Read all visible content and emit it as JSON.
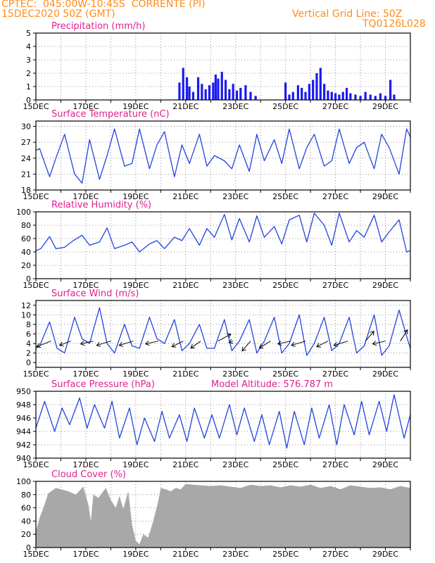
{
  "header": {
    "line1": "CPTEC:  045:00W-10:45S  CORRENTE (PI)",
    "line2": "15DEC2020 50Z (GMT)",
    "right1": "Vertical Grid Line: 50Z",
    "right2": "TQ0126L028"
  },
  "colors": {
    "header": "#ff8c1a",
    "title": "#e0208f",
    "line": "#2244dd",
    "bar": "#1a1aee",
    "cloud": "#a8a8a8",
    "wind_arrow": "#000000"
  },
  "chart_data": [
    {
      "type": "bar",
      "title": "Precipitation (mm/h)",
      "xlabel": "",
      "ylabel": "",
      "xlim": [
        15,
        30
      ],
      "ylim": [
        0,
        5
      ],
      "ytick_labels": [
        "0",
        "1",
        "2",
        "3",
        "4",
        "5"
      ],
      "xtick_labels": [
        "15DEC",
        "17DEC",
        "19DEC",
        "21DEC",
        "23DEC",
        "25DEC",
        "27DEC",
        "29DEC"
      ],
      "x": [
        20.75,
        20.9,
        21.05,
        21.15,
        21.3,
        21.5,
        21.65,
        21.8,
        21.95,
        22.1,
        22.2,
        22.3,
        22.45,
        22.6,
        22.75,
        22.9,
        23.05,
        23.2,
        23.4,
        23.6,
        23.8,
        25.0,
        25.15,
        25.3,
        25.5,
        25.65,
        25.8,
        25.95,
        26.1,
        26.25,
        26.4,
        26.55,
        26.7,
        26.85,
        27.0,
        27.15,
        27.3,
        27.45,
        27.6,
        27.8,
        28.0,
        28.2,
        28.4,
        28.6,
        28.8,
        29.0,
        29.2,
        29.35
      ],
      "values": [
        1.3,
        2.4,
        1.7,
        1.0,
        0.6,
        1.7,
        1.2,
        0.8,
        1.1,
        1.3,
        1.9,
        1.6,
        2.1,
        1.5,
        0.8,
        1.2,
        0.7,
        0.9,
        1.1,
        0.6,
        0.3,
        1.3,
        0.4,
        0.6,
        1.1,
        0.9,
        0.6,
        1.2,
        1.5,
        2.0,
        2.4,
        1.2,
        0.7,
        0.6,
        0.5,
        0.4,
        0.6,
        0.9,
        0.5,
        0.4,
        0.3,
        0.6,
        0.4,
        0.3,
        0.5,
        0.3,
        1.5,
        0.4
      ]
    },
    {
      "type": "line",
      "title": "Surface Temperature (nC)",
      "xlim": [
        15,
        30
      ],
      "ylim": [
        18,
        31
      ],
      "ytick_labels": [
        "18",
        "21",
        "24",
        "27",
        "30"
      ],
      "xtick_labels": [
        "15DEC",
        "17DEC",
        "19DEC",
        "21DEC",
        "23DEC",
        "25DEC",
        "27DEC",
        "29DEC"
      ],
      "x": [
        15.0,
        15.15,
        15.55,
        15.8,
        16.15,
        16.55,
        16.85,
        17.15,
        17.55,
        17.85,
        18.15,
        18.55,
        18.85,
        19.15,
        19.55,
        19.85,
        20.15,
        20.55,
        20.85,
        21.15,
        21.55,
        21.85,
        22.15,
        22.55,
        22.85,
        23.15,
        23.55,
        23.85,
        24.15,
        24.55,
        24.85,
        25.15,
        25.55,
        25.85,
        26.15,
        26.55,
        26.85,
        27.15,
        27.55,
        27.85,
        28.15,
        28.55,
        28.85,
        29.15,
        29.55,
        29.85,
        30.0
      ],
      "values": [
        25.5,
        25.8,
        20.5,
        24.0,
        28.5,
        21.0,
        19.3,
        27.5,
        20.0,
        24.5,
        29.5,
        22.5,
        23.0,
        29.5,
        22.0,
        26.5,
        29.0,
        20.5,
        26.5,
        23.0,
        28.5,
        22.5,
        24.5,
        23.5,
        22.0,
        26.5,
        21.5,
        28.5,
        23.5,
        27.5,
        23.0,
        29.5,
        22.0,
        26.0,
        28.5,
        22.5,
        23.5,
        29.5,
        23.0,
        26.0,
        27.0,
        22.0,
        28.5,
        26.0,
        21.0,
        29.5,
        28.0
      ]
    },
    {
      "type": "line",
      "title": "Relative Humidity (%)",
      "xlim": [
        15,
        30
      ],
      "ylim": [
        0,
        100
      ],
      "ytick_labels": [
        "0",
        "20",
        "40",
        "60",
        "80",
        "100"
      ],
      "xtick_labels": [
        "15DEC",
        "17DEC",
        "19DEC",
        "21DEC",
        "23DEC",
        "25DEC",
        "27DEC",
        "29DEC"
      ],
      "x": [
        15.0,
        15.2,
        15.55,
        15.8,
        16.15,
        16.5,
        16.85,
        17.15,
        17.55,
        17.85,
        18.15,
        18.55,
        18.85,
        19.15,
        19.55,
        19.85,
        20.15,
        20.55,
        20.85,
        21.15,
        21.55,
        21.85,
        22.15,
        22.55,
        22.85,
        23.15,
        23.55,
        23.85,
        24.15,
        24.55,
        24.85,
        25.15,
        25.55,
        25.85,
        26.15,
        26.55,
        26.85,
        27.15,
        27.55,
        27.85,
        28.15,
        28.55,
        28.85,
        29.15,
        29.55,
        29.85,
        30.0
      ],
      "values": [
        42,
        45,
        63,
        45,
        47,
        57,
        65,
        50,
        55,
        76,
        45,
        50,
        55,
        40,
        52,
        57,
        45,
        62,
        57,
        75,
        50,
        75,
        62,
        96,
        58,
        90,
        55,
        94,
        62,
        78,
        52,
        88,
        95,
        55,
        98,
        80,
        50,
        98,
        55,
        72,
        62,
        95,
        55,
        70,
        88,
        40,
        42
      ]
    },
    {
      "type": "line",
      "title": "Surface Wind (m/s)",
      "xlim": [
        15,
        30
      ],
      "ylim": [
        -1,
        13
      ],
      "ytick_labels": [
        "0",
        "2",
        "4",
        "6",
        "8",
        "10",
        "12"
      ],
      "xtick_labels": [
        "15DEC",
        "17DEC",
        "19DEC",
        "21DEC",
        "23DEC",
        "25DEC",
        "27DEC",
        "29DEC"
      ],
      "x": [
        15.0,
        15.15,
        15.55,
        15.85,
        16.15,
        16.55,
        16.85,
        17.15,
        17.55,
        17.85,
        18.15,
        18.55,
        18.85,
        19.15,
        19.55,
        19.85,
        20.15,
        20.55,
        20.85,
        21.15,
        21.55,
        21.85,
        22.15,
        22.55,
        22.85,
        23.15,
        23.55,
        23.85,
        24.15,
        24.55,
        24.85,
        25.15,
        25.55,
        25.85,
        26.15,
        26.55,
        26.85,
        27.15,
        27.55,
        27.85,
        28.15,
        28.55,
        28.85,
        29.15,
        29.55,
        29.85,
        30.0
      ],
      "values": [
        3.0,
        3.5,
        8.5,
        3.0,
        2.0,
        9.5,
        5.0,
        4.0,
        11.5,
        4.0,
        2.0,
        8.0,
        3.5,
        3.0,
        9.5,
        5.0,
        4.0,
        9.0,
        2.5,
        4.0,
        8.0,
        3.0,
        3.0,
        9.0,
        2.5,
        4.5,
        9.0,
        2.0,
        4.5,
        9.5,
        2.0,
        4.0,
        10.0,
        1.5,
        4.0,
        9.5,
        2.5,
        4.0,
        9.5,
        2.0,
        3.5,
        10.0,
        1.5,
        3.5,
        11.0,
        5.5,
        3.0
      ],
      "vectors": {
        "x": [
          15.6,
          16.4,
          17.3,
          18.0,
          18.9,
          19.9,
          20.9,
          21.6,
          22.3,
          22.9,
          23.6,
          24.4,
          25.2,
          25.8,
          26.7,
          27.5,
          28.2,
          29.0,
          29.6
        ],
        "u": [
          -1.0,
          -0.8,
          -0.9,
          -1.0,
          -1.0,
          -0.9,
          -0.8,
          -0.7,
          0.9,
          -0.3,
          -0.6,
          -0.8,
          -0.9,
          -1.0,
          -0.8,
          -1.0,
          0.6,
          -0.9,
          0.5
        ],
        "v": [
          -0.4,
          -0.3,
          -0.2,
          -0.3,
          -0.3,
          -0.2,
          -0.4,
          -0.5,
          0.5,
          -0.1,
          -0.7,
          -0.5,
          -0.2,
          -0.3,
          -0.4,
          -0.3,
          0.7,
          -0.2,
          0.8
        ]
      }
    },
    {
      "type": "line",
      "title": "Surface Pressure (hPa)",
      "annotation": "Model Altitude: 576.787  m",
      "xlim": [
        15,
        30
      ],
      "ylim": [
        940,
        950
      ],
      "ytick_labels": [
        "940",
        "942",
        "944",
        "946",
        "948",
        "950"
      ],
      "xtick_labels": [
        "15DEC",
        "17DEC",
        "19DEC",
        "21DEC",
        "23DEC",
        "25DEC",
        "27DEC",
        "29DEC"
      ],
      "x": [
        15.0,
        15.35,
        15.75,
        16.05,
        16.35,
        16.75,
        17.05,
        17.35,
        17.75,
        18.05,
        18.35,
        18.75,
        19.05,
        19.35,
        19.75,
        20.05,
        20.35,
        20.75,
        21.05,
        21.35,
        21.75,
        22.05,
        22.35,
        22.75,
        23.05,
        23.35,
        23.75,
        24.05,
        24.35,
        24.75,
        25.05,
        25.35,
        25.75,
        26.05,
        26.35,
        26.75,
        27.05,
        27.35,
        27.75,
        28.05,
        28.35,
        28.75,
        29.05,
        29.35,
        29.75,
        30.0
      ],
      "values": [
        944.5,
        948.5,
        944.0,
        947.5,
        945.0,
        949.0,
        944.5,
        948.0,
        944.5,
        948.5,
        943.0,
        947.5,
        942.0,
        946.0,
        942.5,
        947.0,
        943.0,
        946.5,
        942.5,
        947.5,
        943.0,
        946.5,
        943.0,
        948.0,
        943.5,
        947.5,
        942.5,
        946.5,
        942.0,
        947.0,
        941.5,
        947.0,
        942.0,
        947.5,
        943.0,
        948.0,
        942.0,
        948.0,
        943.5,
        948.5,
        943.5,
        948.5,
        944.0,
        949.5,
        943.0,
        946.5
      ]
    },
    {
      "type": "area",
      "title": "Cloud Cover (%)",
      "xlim": [
        15,
        30
      ],
      "ylim": [
        0,
        100
      ],
      "ytick_labels": [
        "0",
        "20",
        "40",
        "60",
        "80",
        "100"
      ],
      "xtick_labels": [
        "15DEC",
        "17DEC",
        "19DEC",
        "21DEC",
        "23DEC",
        "25DEC",
        "27DEC",
        "29DEC"
      ],
      "x": [
        15.0,
        15.15,
        15.3,
        15.5,
        15.8,
        16.0,
        16.3,
        16.6,
        16.9,
        17.1,
        17.2,
        17.3,
        17.5,
        17.8,
        18.0,
        18.2,
        18.35,
        18.5,
        18.7,
        18.85,
        19.0,
        19.15,
        19.3,
        19.5,
        19.7,
        19.9,
        20.0,
        20.2,
        20.4,
        20.6,
        20.8,
        20.9,
        21.0,
        21.3,
        21.6,
        22.0,
        22.4,
        22.8,
        23.2,
        23.6,
        24.0,
        24.4,
        24.8,
        25.2,
        25.6,
        26.0,
        26.4,
        26.8,
        27.2,
        27.6,
        28.0,
        28.4,
        28.8,
        29.2,
        29.6,
        30.0
      ],
      "values": [
        25,
        45,
        60,
        82,
        90,
        88,
        85,
        80,
        92,
        65,
        40,
        80,
        75,
        90,
        72,
        60,
        78,
        58,
        85,
        35,
        10,
        5,
        20,
        15,
        40,
        70,
        90,
        88,
        85,
        90,
        88,
        92,
        96,
        95,
        94,
        93,
        94,
        92,
        90,
        95,
        93,
        94,
        91,
        94,
        92,
        95,
        90,
        93,
        88,
        94,
        92,
        90,
        91,
        88,
        93,
        90
      ]
    }
  ]
}
